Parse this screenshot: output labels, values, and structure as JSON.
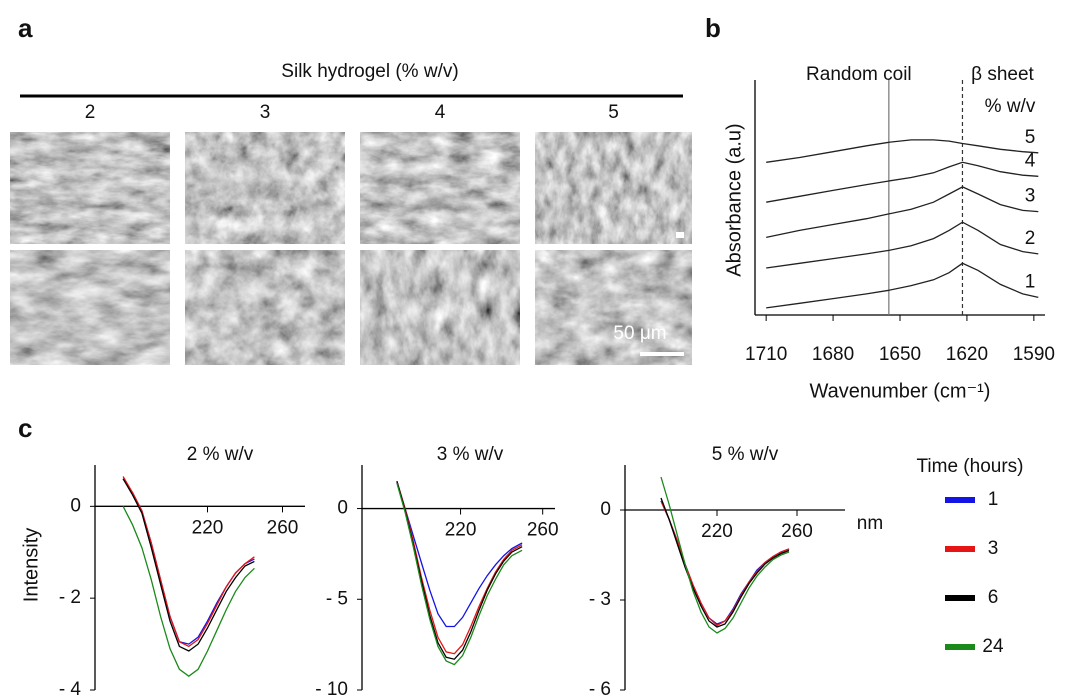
{
  "panel_labels": [
    "a",
    "b",
    "c"
  ],
  "panel_a": {
    "title": "Silk hydrogel (% w/v)",
    "columns": [
      "2",
      "3",
      "4",
      "5"
    ],
    "scale_bar": "50 μm"
  },
  "chart_data": [
    {
      "type": "line",
      "x_label": "Wavenumber (cm⁻¹)",
      "y_label": "Absorbance (a.u)",
      "legend_title": "% w/v",
      "x": [
        1710,
        1695,
        1680,
        1665,
        1655,
        1645,
        1635,
        1628,
        1622,
        1615,
        1605,
        1595,
        1588
      ],
      "series": [
        {
          "name": "1",
          "color": "#222222",
          "values": [
            0.3,
            0.5,
            0.7,
            0.9,
            1.05,
            1.25,
            1.5,
            1.8,
            2.2,
            1.9,
            1.3,
            0.9,
            0.75
          ]
        },
        {
          "name": "2",
          "color": "#222222",
          "values": [
            2.0,
            2.2,
            2.4,
            2.6,
            2.75,
            2.95,
            3.25,
            3.6,
            3.95,
            3.6,
            3.0,
            2.7,
            2.6
          ]
        },
        {
          "name": "3",
          "color": "#222222",
          "values": [
            3.3,
            3.6,
            3.85,
            4.1,
            4.3,
            4.5,
            4.8,
            5.15,
            5.45,
            5.15,
            4.7,
            4.45,
            4.4
          ]
        },
        {
          "name": "4",
          "color": "#222222",
          "values": [
            4.8,
            5.05,
            5.3,
            5.55,
            5.7,
            5.85,
            6.05,
            6.3,
            6.5,
            6.35,
            6.1,
            5.95,
            5.9
          ]
        },
        {
          "name": "5",
          "color": "#222222",
          "values": [
            6.5,
            6.7,
            6.95,
            7.2,
            7.35,
            7.45,
            7.45,
            7.4,
            7.3,
            7.2,
            7.05,
            6.95,
            6.9
          ]
        }
      ],
      "xlim": [
        1715,
        1585
      ],
      "ylim": [
        0,
        10
      ],
      "xticks": [
        1710,
        1680,
        1650,
        1620,
        1590
      ],
      "vlines": [
        {
          "x": 1655,
          "label": "Random coil",
          "style": "solid"
        },
        {
          "x": 1622,
          "label": "β sheet",
          "style": "dashed"
        }
      ]
    },
    {
      "type": "line",
      "title": "2 % w/v",
      "y_label": "Intensity",
      "legend_title": "Time (hours)",
      "x": [
        175,
        180,
        185,
        190,
        195,
        200,
        205,
        210,
        215,
        220,
        225,
        230,
        235,
        240,
        245
      ],
      "series": [
        {
          "name": "1",
          "color": "#1414e6",
          "values": [
            0.6,
            0.3,
            -0.1,
            -0.8,
            -1.6,
            -2.4,
            -2.95,
            -3.0,
            -2.85,
            -2.5,
            -2.1,
            -1.75,
            -1.45,
            -1.25,
            -1.15
          ]
        },
        {
          "name": "3",
          "color": "#e61414",
          "values": [
            0.65,
            0.3,
            -0.1,
            -0.8,
            -1.6,
            -2.4,
            -2.95,
            -3.05,
            -2.9,
            -2.55,
            -2.15,
            -1.75,
            -1.45,
            -1.25,
            -1.1
          ]
        },
        {
          "name": "6",
          "color": "#000000",
          "values": [
            0.6,
            0.25,
            -0.15,
            -0.9,
            -1.7,
            -2.5,
            -3.05,
            -3.15,
            -3.0,
            -2.65,
            -2.25,
            -1.85,
            -1.55,
            -1.3,
            -1.2
          ]
        },
        {
          "name": "24",
          "color": "#1a8a1a",
          "values": [
            0.0,
            -0.4,
            -0.9,
            -1.6,
            -2.4,
            -3.1,
            -3.55,
            -3.7,
            -3.55,
            -3.15,
            -2.7,
            -2.25,
            -1.85,
            -1.55,
            -1.35
          ]
        }
      ],
      "xlim": [
        160,
        272
      ],
      "ylim": [
        -4,
        0.9
      ],
      "xticks": [
        220,
        260
      ],
      "yticks": [
        0,
        {
          "value": -2,
          "label": "- 2"
        },
        {
          "value": -4,
          "label": "- 4"
        }
      ]
    },
    {
      "type": "line",
      "title": "3 % w/v",
      "x": [
        189,
        193,
        197,
        201,
        205,
        209,
        213,
        217,
        221,
        225,
        229,
        233,
        237,
        241,
        245,
        250
      ],
      "series": [
        {
          "color": "#1414e6",
          "values": [
            1.5,
            0,
            -1.5,
            -3.0,
            -4.5,
            -5.8,
            -6.5,
            -6.5,
            -6.0,
            -5.2,
            -4.4,
            -3.7,
            -3.1,
            -2.6,
            -2.2,
            -1.9
          ]
        },
        {
          "color": "#e61414",
          "values": [
            1.5,
            0,
            -1.8,
            -3.8,
            -5.6,
            -7.1,
            -7.9,
            -8.0,
            -7.5,
            -6.5,
            -5.4,
            -4.4,
            -3.5,
            -2.8,
            -2.3,
            -2.0
          ]
        },
        {
          "color": "#000000",
          "values": [
            1.5,
            -0.1,
            -2.0,
            -4.0,
            -5.9,
            -7.4,
            -8.2,
            -8.3,
            -7.8,
            -6.8,
            -5.6,
            -4.5,
            -3.6,
            -2.9,
            -2.4,
            -2.1
          ]
        },
        {
          "color": "#1a8a1a",
          "values": [
            1.4,
            -0.2,
            -2.1,
            -4.2,
            -6.1,
            -7.6,
            -8.4,
            -8.6,
            -8.1,
            -7.1,
            -5.9,
            -4.8,
            -3.9,
            -3.1,
            -2.6,
            -2.3
          ]
        }
      ],
      "xlim": [
        172,
        266
      ],
      "ylim": [
        -10,
        2.4
      ],
      "xticks": [
        220,
        260
      ],
      "yticks": [
        0,
        {
          "value": -5,
          "label": "- 5"
        },
        {
          "value": -10,
          "label": "- 10"
        }
      ]
    },
    {
      "type": "line",
      "title": "5 % w/v",
      "x_unit": "nm",
      "x": [
        192,
        196,
        200,
        204,
        208,
        212,
        216,
        220,
        224,
        228,
        232,
        236,
        240,
        244,
        248,
        252,
        256
      ],
      "series": [
        {
          "color": "#1414e6",
          "values": [
            0.3,
            -0.3,
            -1.0,
            -1.8,
            -2.5,
            -3.1,
            -3.6,
            -3.8,
            -3.7,
            -3.3,
            -2.8,
            -2.4,
            -2.0,
            -1.75,
            -1.55,
            -1.4,
            -1.3
          ]
        },
        {
          "color": "#e61414",
          "values": [
            0.3,
            -0.3,
            -1.0,
            -1.8,
            -2.5,
            -3.1,
            -3.6,
            -3.85,
            -3.7,
            -3.35,
            -2.85,
            -2.4,
            -2.05,
            -1.75,
            -1.55,
            -1.4,
            -1.3
          ]
        },
        {
          "color": "#000000",
          "values": [
            0.4,
            -0.3,
            -1.1,
            -1.9,
            -2.6,
            -3.2,
            -3.7,
            -3.9,
            -3.8,
            -3.4,
            -2.9,
            -2.45,
            -2.1,
            -1.8,
            -1.6,
            -1.45,
            -1.35
          ]
        },
        {
          "color": "#1a8a1a",
          "values": [
            1.1,
            0.2,
            -0.8,
            -1.8,
            -2.7,
            -3.4,
            -3.9,
            -4.1,
            -3.95,
            -3.6,
            -3.1,
            -2.6,
            -2.2,
            -1.9,
            -1.65,
            -1.5,
            -1.4
          ]
        }
      ],
      "xlim": [
        174,
        284
      ],
      "ylim": [
        -6,
        1.5
      ],
      "xticks": [
        220,
        260
      ],
      "yticks": [
        0,
        {
          "value": -3,
          "label": "- 3"
        },
        {
          "value": -6,
          "label": "- 6"
        }
      ]
    }
  ]
}
